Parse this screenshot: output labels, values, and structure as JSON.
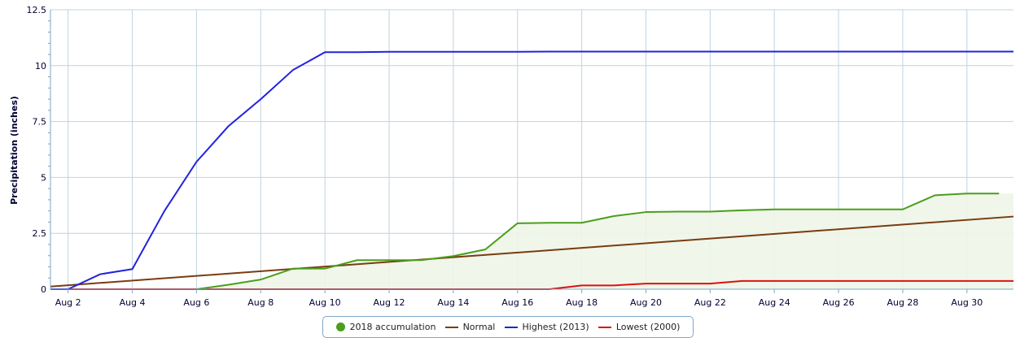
{
  "chart_data": {
    "type": "line",
    "ylabel": "Precipitation (inches)",
    "xlabel": "",
    "ylim": [
      0,
      12.5
    ],
    "xlim": [
      1.45,
      31.45
    ],
    "y_ticks": [
      "0",
      "2.5",
      "5",
      "7.5",
      "10",
      "12.5"
    ],
    "y_tick_values": [
      0,
      2.5,
      5,
      7.5,
      10,
      12.5
    ],
    "x_ticks": [
      "Aug 2",
      "Aug 4",
      "Aug 6",
      "Aug 8",
      "Aug 10",
      "Aug 12",
      "Aug 14",
      "Aug 16",
      "Aug 18",
      "Aug 20",
      "Aug 22",
      "Aug 24",
      "Aug 26",
      "Aug 28",
      "Aug 30"
    ],
    "x_tick_values": [
      2,
      4,
      6,
      8,
      10,
      12,
      14,
      16,
      18,
      20,
      22,
      24,
      26,
      28,
      30
    ],
    "grid": true,
    "legend_position": "bottom-center",
    "series": [
      {
        "name": "2018 accumulation",
        "color": "#4a9e1c",
        "fill": "#eef5e7",
        "marker": "dot",
        "x": [
          6,
          7,
          8,
          9,
          10,
          11,
          12,
          13,
          14,
          15,
          16,
          17,
          18,
          19,
          20,
          21,
          22,
          23,
          24,
          25,
          26,
          27,
          28,
          29,
          30,
          31
        ],
        "y": [
          0,
          0.2,
          0.43,
          0.92,
          0.92,
          1.3,
          1.3,
          1.3,
          1.48,
          1.78,
          2.95,
          2.97,
          2.97,
          3.27,
          3.45,
          3.47,
          3.47,
          3.53,
          3.57,
          3.57,
          3.57,
          3.57,
          3.57,
          4.2,
          4.28,
          4.28
        ]
      },
      {
        "name": "Normal",
        "color": "#7a3b10",
        "marker": "line",
        "x": [
          1.45,
          31.45
        ],
        "y": [
          0.12,
          3.25
        ]
      },
      {
        "name": "Highest (2013)",
        "color": "#2222dd",
        "marker": "line",
        "x": [
          1.45,
          2,
          3,
          4,
          5,
          6,
          7,
          8,
          9,
          10,
          11,
          12,
          13,
          14,
          15,
          16,
          17,
          18,
          19,
          20,
          21,
          22,
          23,
          24,
          25,
          26,
          27,
          28,
          29,
          30,
          31,
          31.45
        ],
        "y": [
          0,
          0,
          0.67,
          0.9,
          3.5,
          5.7,
          7.3,
          8.5,
          9.8,
          10.6,
          10.6,
          10.62,
          10.62,
          10.62,
          10.62,
          10.62,
          10.63,
          10.63,
          10.63,
          10.63,
          10.63,
          10.63,
          10.63,
          10.63,
          10.63,
          10.63,
          10.63,
          10.63,
          10.63,
          10.63,
          10.63,
          10.63
        ]
      },
      {
        "name": "Lowest (2000)",
        "color": "#dd1111",
        "marker": "line",
        "x": [
          1.45,
          17,
          18,
          19,
          20,
          21,
          22,
          23,
          24,
          25,
          26,
          27,
          28,
          29,
          30,
          31,
          31.45
        ],
        "y": [
          0,
          0,
          0.17,
          0.17,
          0.25,
          0.25,
          0.25,
          0.37,
          0.37,
          0.37,
          0.37,
          0.37,
          0.37,
          0.37,
          0.37,
          0.37,
          0.37
        ]
      }
    ]
  }
}
